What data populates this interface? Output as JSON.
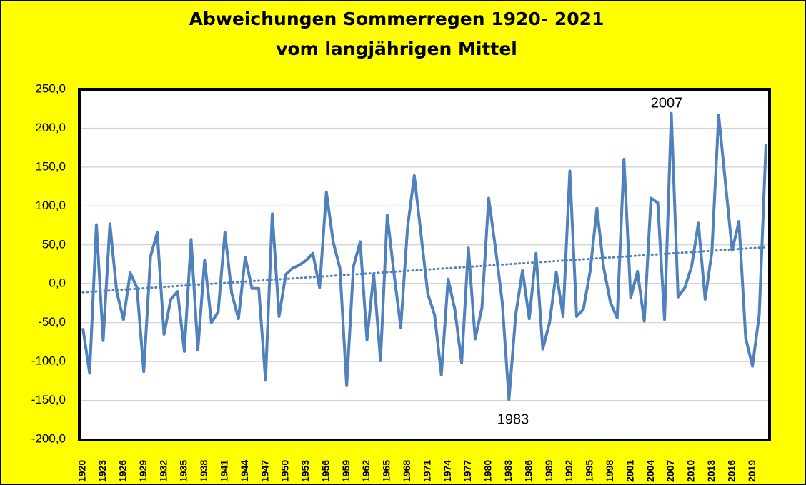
{
  "chart_data": {
    "type": "line",
    "title": "Abweichungen Sommerregen 1920- 2021",
    "subtitle": "vom langjährigen Mittel",
    "categories": [
      "1920",
      null,
      null,
      "1923",
      null,
      null,
      "1926",
      null,
      null,
      "1929",
      null,
      null,
      "1932",
      null,
      null,
      "1935",
      null,
      null,
      "1938",
      null,
      null,
      "1941",
      null,
      null,
      "1944",
      null,
      null,
      "1947",
      null,
      null,
      "1950",
      null,
      null,
      "1953",
      null,
      null,
      "1956",
      null,
      null,
      "1959",
      null,
      null,
      "1962",
      null,
      null,
      "1965",
      null,
      null,
      "1968",
      null,
      null,
      "1971",
      null,
      null,
      "1974",
      null,
      null,
      "1977",
      null,
      null,
      "1980",
      null,
      null,
      "1983",
      null,
      null,
      "1986",
      null,
      null,
      "1989",
      null,
      null,
      "1992",
      null,
      null,
      "1995",
      null,
      null,
      "1998",
      null,
      null,
      "2001",
      null,
      null,
      "2004",
      null,
      null,
      "2007",
      null,
      null,
      "2010",
      null,
      null,
      "2013",
      null,
      null,
      "2016",
      null,
      null,
      "2019",
      null,
      null
    ],
    "series": [
      {
        "color": "#4f81bd",
        "values": [
          -57,
          -115,
          76,
          -73,
          77,
          -10,
          -46,
          14,
          -5,
          -113,
          35,
          66,
          -65,
          -20,
          -10,
          -87,
          57,
          -85,
          30,
          -50,
          -36,
          66,
          -12,
          -45,
          34,
          -6,
          -6,
          -124,
          90,
          -42,
          12,
          20,
          24,
          30,
          39,
          -5,
          118,
          54,
          20,
          -131,
          22,
          54,
          -72,
          12,
          -99,
          88,
          13,
          -56,
          72,
          139,
          63,
          -13,
          -40,
          -117,
          6,
          -33,
          -102,
          46,
          -71,
          -31,
          110,
          46,
          -23,
          -149,
          -40,
          17,
          -45,
          39,
          -84,
          -50,
          15,
          -42,
          145,
          -42,
          -33,
          16,
          97,
          21,
          -24,
          -44,
          160,
          -18,
          16,
          -48,
          110,
          104,
          -46,
          219,
          -17,
          -5,
          22,
          78,
          -20,
          41,
          217,
          130,
          43,
          80,
          -70,
          -106,
          -40,
          180
        ]
      }
    ],
    "trend": {
      "color": "#4f81bd",
      "values": [
        -11,
        47
      ]
    },
    "annotations": [
      "2007",
      "1983"
    ],
    "ylim": [
      -200,
      250
    ],
    "yticks": [
      {
        "value": -200,
        "label": "-200,0"
      },
      {
        "value": -150,
        "label": "-150,0"
      },
      {
        "value": -100,
        "label": "-100,0"
      },
      {
        "value": -50,
        "label": "-50,0"
      },
      {
        "value": 0,
        "label": "0,0"
      },
      {
        "value": 50,
        "label": "50,0"
      },
      {
        "value": 100,
        "label": "100,0"
      },
      {
        "value": 150,
        "label": "150,0"
      },
      {
        "value": 200,
        "label": "200,0"
      },
      {
        "value": 250,
        "label": "250,0"
      }
    ],
    "grid": true
  }
}
